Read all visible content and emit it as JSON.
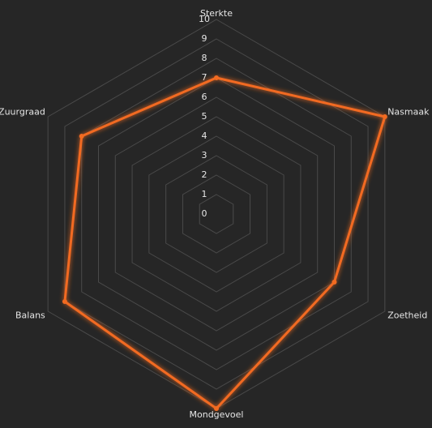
{
  "chart_data": {
    "type": "radar",
    "categories": [
      "Sterkte",
      "Nasmaak",
      "Zoetheid",
      "Mondgevoel",
      "Balans",
      "Zuurgraad"
    ],
    "series": [
      {
        "color": "#f26b21",
        "values": [
          7,
          10,
          7,
          10,
          9,
          8
        ]
      }
    ],
    "ylim": [
      0,
      10
    ],
    "yticks": [
      0,
      1,
      2,
      3,
      4,
      5,
      6,
      7,
      8,
      9,
      10
    ],
    "grid": true
  }
}
